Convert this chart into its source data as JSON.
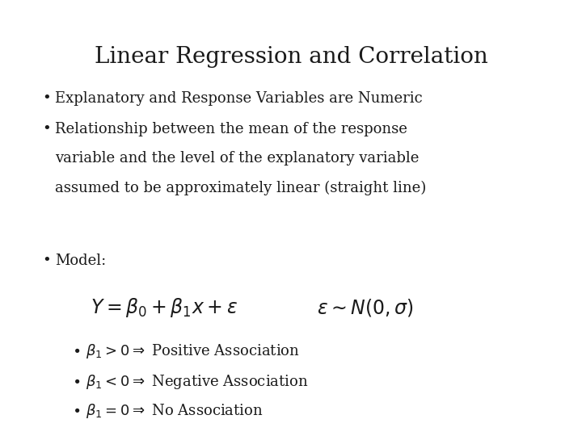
{
  "title": "Linear Regression and Correlation",
  "title_fontsize": 20,
  "background_color": "#ffffff",
  "text_color": "#1a1a1a",
  "bullet1": "Explanatory and Response Variables are Numeric",
  "bullet2_line1": "Relationship between the mean of the response",
  "bullet2_line2": "variable and the level of the explanatory variable",
  "bullet2_line3": "assumed to be approximately linear (straight line)",
  "bullet3": "Model:",
  "main_eq": "$Y = \\beta_0 + \\beta_1 x + \\varepsilon$",
  "dist_eq": "$\\varepsilon \\sim N(0,\\sigma)$",
  "sub1": "$\\bullet\\ \\beta_1 > 0 \\Rightarrow$ Positive Association",
  "sub2": "$\\bullet\\ \\beta_1 < 0 \\Rightarrow$ Negative Association",
  "sub3": "$\\bullet\\ \\beta_1 = 0 \\Rightarrow$ No Association",
  "body_fontsize": 13,
  "eq_fontsize": 17,
  "sub_fontsize": 13
}
